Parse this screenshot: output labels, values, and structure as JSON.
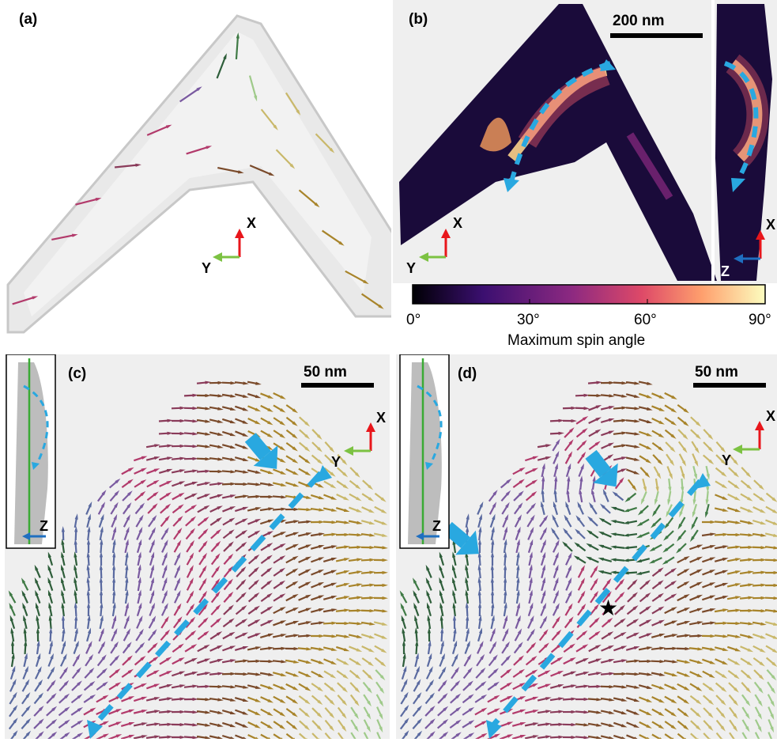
{
  "panels": {
    "a": {
      "label": "(a)"
    },
    "b": {
      "label": "(b)",
      "scale_label": "200 nm"
    },
    "c": {
      "label": "(c)",
      "scale_label": "50 nm"
    },
    "d": {
      "label": "(d)",
      "scale_label": "50 nm"
    }
  },
  "axes": {
    "x": "X",
    "y": "Y",
    "z": "Z"
  },
  "colorbar": {
    "title": "Maximum spin angle",
    "ticks": [
      "0°",
      "30°",
      "60°",
      "90°"
    ],
    "colors": [
      "#000004",
      "#3b0f70",
      "#8c2981",
      "#de4968",
      "#fe9f6d",
      "#fcfdbf"
    ]
  },
  "colors": {
    "arrow_blue": "#29a8e0",
    "axis_x": "#e8161b",
    "axis_y": "#7cc242",
    "axis_z": "#1f6fc0",
    "background_grey": "#efefef"
  }
}
